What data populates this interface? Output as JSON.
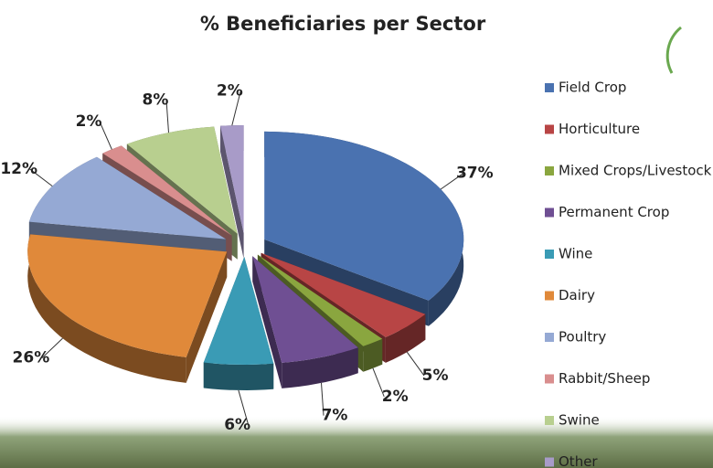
{
  "chart_data": {
    "type": "pie3d",
    "title": "% Beneficiaries per Sector",
    "categories": [
      "Field Crop",
      "Horticulture",
      "Mixed Crops/Livestock",
      "Permanent Crop",
      "Wine",
      "Dairy",
      "Poultry",
      "Rabbit/Sheep",
      "Swine",
      "Other"
    ],
    "values": [
      37,
      5,
      2,
      7,
      6,
      26,
      12,
      2,
      8,
      2
    ],
    "value_labels": [
      "37%",
      "5%",
      "2%",
      "7%",
      "6%",
      "26%",
      "12%",
      "2%",
      "8%",
      "2%"
    ],
    "colors": [
      "#4a72b0",
      "#b84545",
      "#8aa63f",
      "#6f4f93",
      "#3a9bb5",
      "#e0893a",
      "#95a9d4",
      "#d98e8e",
      "#b8cf8f",
      "#a89bc8"
    ],
    "legend": "right"
  }
}
